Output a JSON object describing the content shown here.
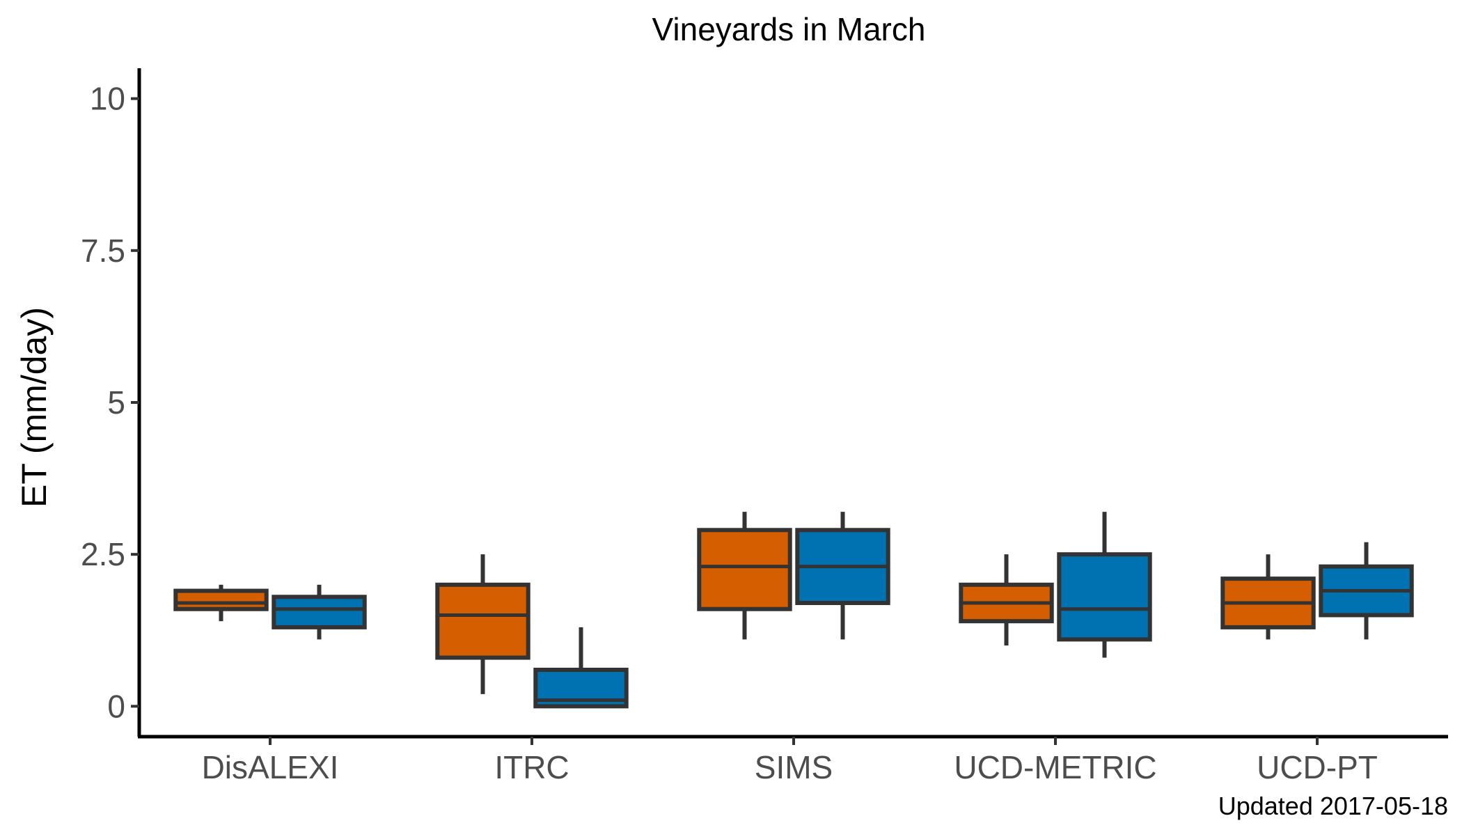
{
  "chart_data": {
    "type": "boxplot",
    "title": "Vineyards in March",
    "xlabel": "",
    "ylabel": "ET (mm/day)",
    "ylim": [
      -0.5,
      10.5
    ],
    "yticks": [
      0,
      2.5,
      5,
      7.5,
      10
    ],
    "ytick_labels": [
      "0",
      "2.5",
      "5",
      "7.5",
      "10"
    ],
    "grid": false,
    "legend": "none",
    "categories": [
      "DisALEXI",
      "ITRC",
      "SIMS",
      "UCD-METRIC",
      "UCD-PT"
    ],
    "series": [
      {
        "color": "#d55e00",
        "boxes": [
          {
            "min": 1.4,
            "q1": 1.6,
            "median": 1.7,
            "q3": 1.9,
            "max": 2.0
          },
          {
            "min": 0.2,
            "q1": 0.8,
            "median": 1.5,
            "q3": 2.0,
            "max": 2.5
          },
          {
            "min": 1.1,
            "q1": 1.6,
            "median": 2.3,
            "q3": 2.9,
            "max": 3.2
          },
          {
            "min": 1.0,
            "q1": 1.4,
            "median": 1.7,
            "q3": 2.0,
            "max": 2.5
          },
          {
            "min": 1.1,
            "q1": 1.3,
            "median": 1.7,
            "q3": 2.1,
            "max": 2.5
          }
        ]
      },
      {
        "color": "#0072b2",
        "boxes": [
          {
            "min": 1.1,
            "q1": 1.3,
            "median": 1.6,
            "q3": 1.8,
            "max": 2.0
          },
          {
            "min": 0.0,
            "q1": 0.0,
            "median": 0.1,
            "q3": 0.6,
            "max": 1.3
          },
          {
            "min": 1.1,
            "q1": 1.7,
            "median": 2.3,
            "q3": 2.9,
            "max": 3.2
          },
          {
            "min": 0.8,
            "q1": 1.1,
            "median": 1.6,
            "q3": 2.5,
            "max": 3.2
          },
          {
            "min": 1.1,
            "q1": 1.5,
            "median": 1.9,
            "q3": 2.3,
            "max": 2.7
          }
        ]
      }
    ]
  },
  "caption": "Updated  2017-05-18"
}
